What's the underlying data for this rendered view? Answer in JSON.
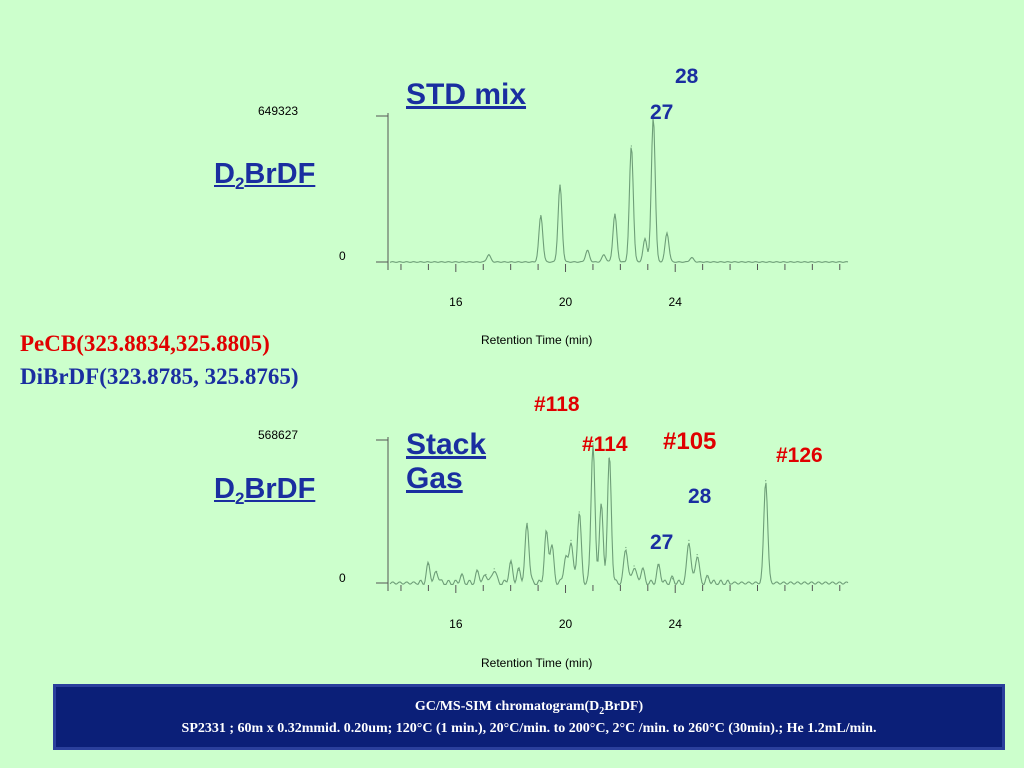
{
  "top_panel": {
    "title": "STD mix",
    "compound_main": "D",
    "compound_sub": "2",
    "compound_rest": "BrDF",
    "ymax_label": "649323",
    "ymin_label": "0",
    "xlabel": "Retention Time (min)",
    "peak_labels": {
      "p28": "28",
      "p27": "27"
    }
  },
  "bottom_panel": {
    "title_line1": "Stack",
    "title_line2": "Gas",
    "compound_main": "D",
    "compound_sub": "2",
    "compound_rest": "BrDF",
    "ymax_label": "568627",
    "ymin_label": "0",
    "xlabel": "Retention Time (min)",
    "peak_labels": {
      "p118": "#118",
      "p114": "#114",
      "p105": "#105",
      "p126": "#126",
      "p28": "28",
      "p27": "27"
    }
  },
  "ions": {
    "pecb": "PeCB(323.8834,325.8805)",
    "dibrdf": "DiBrDF(323.8785, 325.8765)"
  },
  "caption": {
    "line1_main": "GC/MS-SIM chromatogram(D",
    "line1_sub": "2",
    "line1_rest": "BrDF)",
    "line2": "SP2331 ; 60m x 0.32mmid. 0.20um; 120°C (1 min.), 20°C/min. to 200°C, 2°C /min. to 260°C (30min).; He 1.2mL/min."
  },
  "colors": {
    "trace": "#6e9e78",
    "axis": "#555555",
    "background": "#ccffcc",
    "blue": "#1a2ea0",
    "red": "#e00000"
  },
  "chart_data": [
    {
      "type": "line",
      "title": "STD mix",
      "xlabel": "Retention Time (min)",
      "ylabel": "",
      "xlim": [
        13.6,
        30.3
      ],
      "ylim": [
        0,
        649323
      ],
      "x_ticks": [
        16,
        20,
        24
      ],
      "peaks": [
        {
          "rt": 17.2,
          "height": 0.05
        },
        {
          "rt": 19.1,
          "height": 0.32
        },
        {
          "rt": 19.8,
          "height": 0.53
        },
        {
          "rt": 20.8,
          "height": 0.08
        },
        {
          "rt": 21.4,
          "height": 0.05
        },
        {
          "rt": 21.8,
          "height": 0.33
        },
        {
          "rt": 22.4,
          "height": 0.8
        },
        {
          "rt": 22.9,
          "height": 0.16
        },
        {
          "rt": 23.2,
          "height": 1.0
        },
        {
          "rt": 23.7,
          "height": 0.2
        },
        {
          "rt": 24.6,
          "height": 0.03
        }
      ]
    },
    {
      "type": "line",
      "title": "Stack Gas",
      "xlabel": "Retention Time (min)",
      "ylabel": "",
      "xlim": [
        13.6,
        30.3
      ],
      "ylim": [
        0,
        568627
      ],
      "x_ticks": [
        16,
        20,
        24
      ],
      "peaks": [
        {
          "rt": 15.0,
          "height": 0.13
        },
        {
          "rt": 15.3,
          "height": 0.08
        },
        {
          "rt": 16.2,
          "height": 0.05
        },
        {
          "rt": 16.8,
          "height": 0.08
        },
        {
          "rt": 17.1,
          "height": 0.06
        },
        {
          "rt": 17.4,
          "height": 0.1
        },
        {
          "rt": 18.0,
          "height": 0.14
        },
        {
          "rt": 18.3,
          "height": 0.09
        },
        {
          "rt": 18.6,
          "height": 0.42
        },
        {
          "rt": 19.3,
          "height": 0.35
        },
        {
          "rt": 19.5,
          "height": 0.26
        },
        {
          "rt": 20.0,
          "height": 0.18
        },
        {
          "rt": 20.2,
          "height": 0.3
        },
        {
          "rt": 20.5,
          "height": 0.5
        },
        {
          "rt": 21.0,
          "height": 0.98
        },
        {
          "rt": 21.3,
          "height": 0.55
        },
        {
          "rt": 21.6,
          "height": 0.88
        },
        {
          "rt": 22.2,
          "height": 0.25
        },
        {
          "rt": 22.5,
          "height": 0.12
        },
        {
          "rt": 22.8,
          "height": 0.1
        },
        {
          "rt": 23.4,
          "height": 0.12
        },
        {
          "rt": 23.9,
          "height": 0.03
        },
        {
          "rt": 24.5,
          "height": 0.3
        },
        {
          "rt": 24.8,
          "height": 0.2
        },
        {
          "rt": 25.2,
          "height": 0.04
        },
        {
          "rt": 27.3,
          "height": 0.72
        }
      ]
    }
  ]
}
